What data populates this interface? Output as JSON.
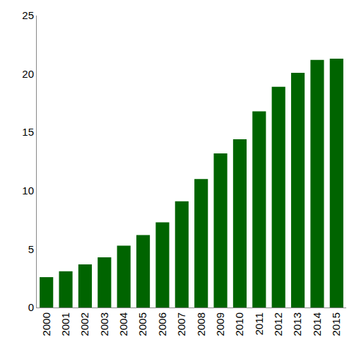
{
  "chart_data": {
    "type": "bar",
    "categories": [
      "2000",
      "2001",
      "2002",
      "2003",
      "2004",
      "2005",
      "2006",
      "2007",
      "2008",
      "2009",
      "2010",
      "2011",
      "2012",
      "2013",
      "2014",
      "2015"
    ],
    "values": [
      2.6,
      3.1,
      3.7,
      4.3,
      5.3,
      6.2,
      7.3,
      9.1,
      11.0,
      13.2,
      14.4,
      16.8,
      18.9,
      20.1,
      21.2,
      21.3
    ],
    "color": "#006400",
    "ylim": [
      0,
      25
    ],
    "yticks": [
      0,
      5,
      10,
      15,
      20,
      25
    ],
    "grid": false
  }
}
